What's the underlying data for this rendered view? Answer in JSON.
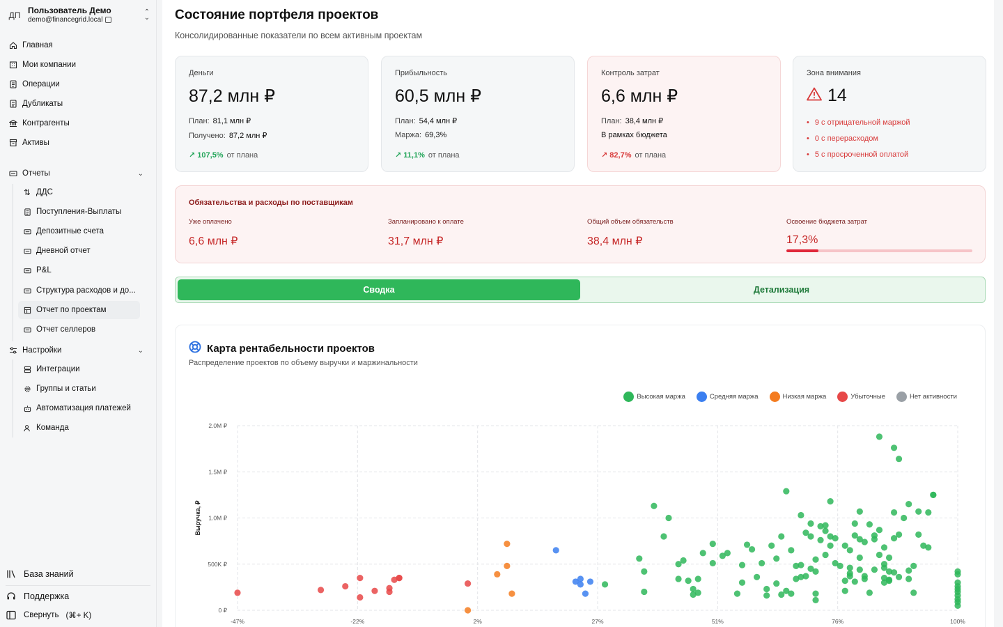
{
  "sidebar": {
    "user": {
      "initials": "ДП",
      "name": "Пользователь Демо",
      "email": "demo@financegrid.local"
    },
    "items": [
      {
        "label": "Главная",
        "icon": "home-icon"
      },
      {
        "label": "Мои компании",
        "icon": "building-icon"
      },
      {
        "label": "Операции",
        "icon": "document-icon"
      },
      {
        "label": "Дубликаты",
        "icon": "duplicate-icon"
      },
      {
        "label": "Контрагенты",
        "icon": "bank-icon"
      },
      {
        "label": "Активы",
        "icon": "archive-icon"
      }
    ],
    "reports": {
      "label": "Отчеты",
      "items": [
        {
          "label": "ДДС"
        },
        {
          "label": "Поступления-Выплаты"
        },
        {
          "label": "Депозитные счета"
        },
        {
          "label": "Дневной отчет"
        },
        {
          "label": "P&L"
        },
        {
          "label": "Структура расходов и до..."
        },
        {
          "label": "Отчет по проектам"
        },
        {
          "label": "Отчет селлеров"
        }
      ]
    },
    "settings": {
      "label": "Настройки",
      "items": [
        {
          "label": "Интеграции"
        },
        {
          "label": "Группы и статьи"
        },
        {
          "label": "Автоматизация платежей"
        },
        {
          "label": "Команда"
        }
      ]
    },
    "bottom": {
      "knowledge": "База знаний",
      "support": "Поддержка",
      "collapse": "Свернуть",
      "collapse_shortcut": "(⌘+ K)"
    }
  },
  "main": {
    "title": "Состояние портфеля проектов",
    "subtitle": "Консолидированные показатели по всем активным проектам",
    "cards": {
      "money": {
        "label": "Деньги",
        "value": "87,2 млн ₽",
        "plan_k": "План:",
        "plan_v": "81,1 млн ₽",
        "recv_k": "Получено:",
        "recv_v": "87,2 млн ₽",
        "trend": "107,5%",
        "trend_tail": "от плана"
      },
      "profit": {
        "label": "Прибыльность",
        "value": "60,5 млн ₽",
        "plan_k": "План:",
        "plan_v": "54,4 млн ₽",
        "margin_k": "Маржа:",
        "margin_v": "69,3%",
        "trend": "11,1%",
        "trend_tail": "от плана"
      },
      "costs": {
        "label": "Контроль затрат",
        "value": "6,6 млн ₽",
        "plan_k": "План:",
        "plan_v": "38,4 млн ₽",
        "note": "В рамках бюджета",
        "trend": "82,7%",
        "trend_tail": "от плана"
      },
      "attention": {
        "label": "Зона внимания",
        "value": "14",
        "items": [
          "9 с отрицательной маржой",
          "0 с перерасходом",
          "5 с просроченной оплатой"
        ]
      }
    },
    "liabilities": {
      "title": "Обязательства и расходы по поставщикам",
      "cols": [
        {
          "label": "Уже оплачено",
          "value": "6,6 млн ₽"
        },
        {
          "label": "Запланировано к оплате",
          "value": "31,7 млн ₽"
        },
        {
          "label": "Общий объем обязательств",
          "value": "38,4 млн ₽"
        },
        {
          "label": "Освоение бюджета затрат",
          "value": "17,3%"
        }
      ],
      "budget_progress": 0.173
    },
    "tabs": [
      {
        "label": "Сводка"
      },
      {
        "label": "Детализация"
      }
    ],
    "chart": {
      "title": "Карта рентабельности проектов",
      "subtitle": "Распределение проектов по объему выручки и маржинальности"
    }
  },
  "colors": {
    "green": "#2fb75a",
    "blue": "#3b7ff0",
    "orange": "#f47c20",
    "red": "#e74848",
    "gray": "#9aa0a6"
  },
  "chart_data": {
    "type": "scatter",
    "xlabel": "",
    "ylabel": "Выручка, ₽",
    "x_ticks": [
      "-47%",
      "-22%",
      "2%",
      "27%",
      "51%",
      "76%",
      "100%"
    ],
    "y_ticks": [
      "0 ₽",
      "500K ₽",
      "1.0M ₽",
      "1.5M ₽",
      "2.0M ₽"
    ],
    "xlim": [
      -47,
      100
    ],
    "ylim": [
      0,
      2000000
    ],
    "grid": true,
    "legend_position": "top-right",
    "series": [
      {
        "name": "Высокая маржа",
        "color": "#2fb75a",
        "points": [
          [
            28,
            280000
          ],
          [
            35,
            560000
          ],
          [
            36,
            420000
          ],
          [
            36,
            200000
          ],
          [
            38,
            1130000
          ],
          [
            40,
            800000
          ],
          [
            41,
            1000000
          ],
          [
            43,
            500000
          ],
          [
            43,
            340000
          ],
          [
            44,
            540000
          ],
          [
            45,
            320000
          ],
          [
            46,
            170000
          ],
          [
            46,
            230000
          ],
          [
            47,
            190000
          ],
          [
            47,
            340000
          ],
          [
            48,
            620000
          ],
          [
            50,
            510000
          ],
          [
            50,
            720000
          ],
          [
            52,
            590000
          ],
          [
            53,
            620000
          ],
          [
            55,
            180000
          ],
          [
            56,
            490000
          ],
          [
            56,
            300000
          ],
          [
            57,
            710000
          ],
          [
            58,
            660000
          ],
          [
            59,
            360000
          ],
          [
            60,
            510000
          ],
          [
            61,
            230000
          ],
          [
            61,
            160000
          ],
          [
            62,
            700000
          ],
          [
            63,
            560000
          ],
          [
            63,
            290000
          ],
          [
            64,
            170000
          ],
          [
            64,
            800000
          ],
          [
            65,
            210000
          ],
          [
            65,
            1290000
          ],
          [
            66,
            180000
          ],
          [
            66,
            650000
          ],
          [
            67,
            340000
          ],
          [
            67,
            480000
          ],
          [
            68,
            360000
          ],
          [
            68,
            1030000
          ],
          [
            68,
            490000
          ],
          [
            69,
            370000
          ],
          [
            69,
            840000
          ],
          [
            70,
            800000
          ],
          [
            70,
            450000
          ],
          [
            70,
            940000
          ],
          [
            71,
            420000
          ],
          [
            71,
            110000
          ],
          [
            71,
            180000
          ],
          [
            71,
            550000
          ],
          [
            72,
            910000
          ],
          [
            72,
            760000
          ],
          [
            73,
            860000
          ],
          [
            73,
            920000
          ],
          [
            73,
            600000
          ],
          [
            74,
            800000
          ],
          [
            74,
            700000
          ],
          [
            74,
            1180000
          ],
          [
            75,
            510000
          ],
          [
            75,
            780000
          ],
          [
            76,
            480000
          ],
          [
            77,
            320000
          ],
          [
            77,
            700000
          ],
          [
            77,
            210000
          ],
          [
            78,
            370000
          ],
          [
            78,
            400000
          ],
          [
            78,
            460000
          ],
          [
            78,
            650000
          ],
          [
            79,
            310000
          ],
          [
            79,
            940000
          ],
          [
            79,
            810000
          ],
          [
            80,
            570000
          ],
          [
            80,
            770000
          ],
          [
            80,
            1070000
          ],
          [
            80,
            440000
          ],
          [
            81,
            340000
          ],
          [
            81,
            370000
          ],
          [
            81,
            740000
          ],
          [
            82,
            930000
          ],
          [
            82,
            190000
          ],
          [
            83,
            810000
          ],
          [
            83,
            440000
          ],
          [
            83,
            770000
          ],
          [
            84,
            600000
          ],
          [
            84,
            1880000
          ],
          [
            84,
            870000
          ],
          [
            85,
            300000
          ],
          [
            85,
            350000
          ],
          [
            85,
            460000
          ],
          [
            85,
            500000
          ],
          [
            85,
            680000
          ],
          [
            86,
            320000
          ],
          [
            86,
            420000
          ],
          [
            86,
            330000
          ],
          [
            86,
            570000
          ],
          [
            87,
            410000
          ],
          [
            87,
            1760000
          ],
          [
            87,
            1060000
          ],
          [
            87,
            780000
          ],
          [
            88,
            360000
          ],
          [
            88,
            1640000
          ],
          [
            88,
            820000
          ],
          [
            89,
            1000000
          ],
          [
            90,
            1150000
          ],
          [
            90,
            340000
          ],
          [
            90,
            430000
          ],
          [
            91,
            190000
          ],
          [
            91,
            480000
          ],
          [
            92,
            1070000
          ],
          [
            92,
            820000
          ],
          [
            93,
            700000
          ],
          [
            94,
            1060000
          ],
          [
            94,
            680000
          ],
          [
            95,
            1250000
          ],
          [
            95,
            1250000
          ],
          [
            100,
            420000
          ],
          [
            100,
            390000
          ],
          [
            100,
            260000
          ],
          [
            100,
            200000
          ],
          [
            100,
            160000
          ],
          [
            100,
            120000
          ],
          [
            100,
            90000
          ],
          [
            100,
            50000
          ],
          [
            100,
            300000
          ],
          [
            100,
            230000
          ]
        ]
      },
      {
        "name": "Средняя маржа",
        "color": "#3b7ff0",
        "points": [
          [
            18,
            650000
          ],
          [
            22,
            310000
          ],
          [
            23,
            280000
          ],
          [
            23,
            340000
          ],
          [
            24,
            180000
          ],
          [
            25,
            310000
          ]
        ]
      },
      {
        "name": "Низкая маржа",
        "color": "#f47c20",
        "points": [
          [
            0,
            0
          ],
          [
            6,
            390000
          ],
          [
            8,
            480000
          ],
          [
            8,
            720000
          ],
          [
            9,
            180000
          ]
        ]
      },
      {
        "name": "Убыточные",
        "color": "#e74848",
        "points": [
          [
            -47,
            190000
          ],
          [
            -30,
            220000
          ],
          [
            -25,
            260000
          ],
          [
            -22,
            350000
          ],
          [
            -22,
            140000
          ],
          [
            -19,
            210000
          ],
          [
            -16,
            240000
          ],
          [
            -16,
            200000
          ],
          [
            -15,
            330000
          ],
          [
            -14,
            350000
          ],
          [
            -14,
            350000
          ],
          [
            0,
            290000
          ]
        ]
      },
      {
        "name": "Нет активности",
        "color": "#9aa0a6",
        "points": []
      }
    ]
  }
}
